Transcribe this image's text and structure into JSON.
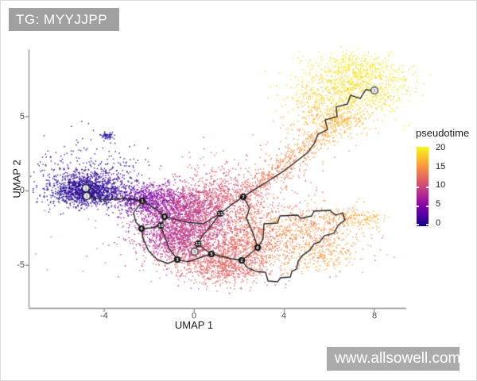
{
  "tag": {
    "label": "TG: MYYJJPP",
    "bg": "#a0a0a0",
    "color": "#ffffff"
  },
  "watermark": {
    "label": "www.allsowell.com",
    "bg": "#ababab",
    "color": "#ffffff"
  },
  "chart_data": {
    "type": "scatter",
    "title": "",
    "xlabel": "UMAP 1",
    "ylabel": "UMAP 2",
    "x_ticks": [
      -4,
      0,
      4,
      8
    ],
    "y_ticks": [
      5,
      0,
      -5
    ],
    "x_tick_labels": [
      "-4",
      "0",
      "4",
      "8"
    ],
    "y_tick_labels": [
      "5",
      "0",
      "-5"
    ],
    "xlim": [
      -7.4,
      9.4
    ],
    "ylim": [
      -7.9,
      9.5
    ],
    "grid": false,
    "axis_color": "#8f8f8f",
    "color_by": "pseudotime",
    "legend": {
      "title": "pseudotime",
      "position": "right",
      "ticks": [
        20,
        15,
        10,
        5,
        0
      ],
      "tick_labels": [
        "20",
        "15",
        "10",
        "5",
        "0"
      ],
      "range": [
        0,
        20
      ],
      "colormap": "plasma"
    },
    "palette_stops": [
      [
        0.0,
        "#0d0887"
      ],
      [
        0.125,
        "#4c02a1"
      ],
      [
        0.25,
        "#7e03a8"
      ],
      [
        0.375,
        "#aa2395"
      ],
      [
        0.5,
        "#cc4778"
      ],
      [
        0.625,
        "#e66c5c"
      ],
      [
        0.75,
        "#f89441"
      ],
      [
        0.875,
        "#fdc328"
      ],
      [
        1.0,
        "#f0f921"
      ]
    ],
    "clusters": [
      {
        "name": "left-core",
        "n": 1100,
        "cx": -4.82,
        "cy": -0.03,
        "sx": 0.75,
        "sy": 0.5,
        "rot": 0,
        "t": [
          0,
          1.5
        ]
      },
      {
        "name": "left-halo",
        "n": 500,
        "cx": -4.5,
        "cy": 0.4,
        "sx": 1.35,
        "sy": 0.85,
        "rot": -8,
        "t": [
          0,
          3
        ]
      },
      {
        "name": "left-upper-sparse",
        "n": 85,
        "cx": -4.6,
        "cy": 1.84,
        "sx": 1.2,
        "sy": 0.9,
        "rot": 0,
        "t": [
          0,
          2
        ]
      },
      {
        "name": "left-tail",
        "line": [
          -3.3,
          -0.45,
          -1.81,
          -0.72
        ],
        "sd": 0.45,
        "n": 330,
        "t": [
          2,
          5
        ]
      },
      {
        "name": "isolated-blob",
        "n": 45,
        "cx": -3.9,
        "cy": 3.71,
        "sx": 0.16,
        "sy": 0.1,
        "rot": 0,
        "t": [
          0,
          1
        ]
      },
      {
        "name": "isolated-sparse",
        "n": 16,
        "cx": -4.1,
        "cy": 3.2,
        "sx": 1.1,
        "sy": 0.85,
        "rot": 0,
        "t": [
          0,
          1.5
        ]
      },
      {
        "name": "violet-band",
        "n": 520,
        "cx": -1.35,
        "cy": -0.67,
        "sx": 0.85,
        "sy": 0.55,
        "rot": -5,
        "t": [
          4,
          7
        ]
      },
      {
        "name": "violet-lower",
        "n": 620,
        "cx": -1.18,
        "cy": -2.27,
        "sx": 0.75,
        "sy": 0.95,
        "rot": 0,
        "t": [
          5.5,
          8.5
        ]
      },
      {
        "name": "purple-deep",
        "n": 500,
        "cx": -0.51,
        "cy": -3.39,
        "sx": 0.9,
        "sy": 0.75,
        "rot": 0,
        "t": [
          7,
          10
        ]
      },
      {
        "name": "magenta-mid",
        "n": 680,
        "cx": 0.27,
        "cy": -2.16,
        "sx": 0.95,
        "sy": 1.05,
        "rot": 0,
        "t": [
          8,
          11.5
        ]
      },
      {
        "name": "mauve-top",
        "n": 420,
        "cx": 0.8,
        "cy": -0.29,
        "sx": 1.0,
        "sy": 0.7,
        "rot": 0,
        "t": [
          9.5,
          12.5
        ]
      },
      {
        "name": "pink-upper-left",
        "n": 250,
        "cx": -0.12,
        "cy": -1.25,
        "sx": 0.6,
        "sy": 0.6,
        "rot": 0,
        "t": [
          7.5,
          10
        ]
      },
      {
        "name": "bottom-maroon",
        "n": 680,
        "cx": 0.87,
        "cy": -4.45,
        "sx": 1.15,
        "sy": 0.75,
        "rot": 0,
        "t": [
          10.5,
          13
        ]
      },
      {
        "name": "bottom-deep",
        "n": 320,
        "cx": 1.47,
        "cy": -5.41,
        "sx": 0.95,
        "sy": 0.55,
        "rot": 0,
        "t": [
          11,
          13
        ]
      },
      {
        "name": "rose-right",
        "n": 420,
        "cx": 2.5,
        "cy": -3.6,
        "sx": 0.8,
        "sy": 0.85,
        "rot": 0,
        "t": [
          12,
          14
        ]
      },
      {
        "name": "rose-arm-base",
        "n": 220,
        "cx": 2.18,
        "cy": -1.41,
        "sx": 0.55,
        "sy": 0.9,
        "rot": 0,
        "t": [
          11.5,
          13
        ]
      },
      {
        "name": "tan-right",
        "n": 540,
        "cx": 4.9,
        "cy": -3.01,
        "sx": 1.35,
        "sy": 0.95,
        "rot": 10,
        "t": [
          13.5,
          16
        ]
      },
      {
        "name": "orange-strip",
        "line": [
          6.0,
          -1.73,
          8.29,
          -1.95
        ],
        "sd": 0.28,
        "n": 150,
        "t": [
          15,
          17
        ]
      },
      {
        "name": "orange-pocket",
        "n": 160,
        "cx": 5.57,
        "cy": -4.35,
        "sx": 0.8,
        "sy": 0.5,
        "rot": 0,
        "t": [
          14.5,
          16.5
        ]
      },
      {
        "name": "arm",
        "line": [
          2.32,
          -0.29,
          6.77,
          5.04
        ],
        "sd": 0.32,
        "n": 470,
        "t": [
          12,
          17
        ]
      },
      {
        "name": "arm-halo",
        "line": [
          2.57,
          0.08,
          6.25,
          4.51
        ],
        "sd": 0.8,
        "n": 140,
        "t": [
          12,
          16
        ]
      },
      {
        "name": "topright-main",
        "n": 760,
        "cx": 7.2,
        "cy": 7.07,
        "sx": 1.15,
        "sy": 0.95,
        "rot": -20,
        "t": [
          17.5,
          20
        ]
      },
      {
        "name": "topright-left",
        "n": 200,
        "cx": 5.57,
        "cy": 6.32,
        "sx": 0.8,
        "sy": 0.8,
        "rot": 0,
        "t": [
          17,
          19
        ]
      },
      {
        "name": "topright-bottom-orange",
        "n": 230,
        "cx": 6.28,
        "cy": 4.77,
        "sx": 0.85,
        "sy": 0.55,
        "rot": 0,
        "t": [
          15.5,
          17.5
        ]
      },
      {
        "name": "topright-top-edge",
        "n": 220,
        "cx": 7.38,
        "cy": 8.35,
        "sx": 1.0,
        "sy": 0.45,
        "rot": -15,
        "t": [
          18.5,
          20
        ]
      },
      {
        "name": "noise-mid",
        "n": 330,
        "cx": 0.5,
        "cy": -2.4,
        "sx": 2.6,
        "sy": 1.9,
        "rot": 0,
        "t": [
          7,
          13
        ]
      },
      {
        "name": "gap-above",
        "n": 80,
        "cx": 1.5,
        "cy": 0.9,
        "sx": 1.3,
        "sy": 0.8,
        "rot": 0,
        "t": [
          10,
          13
        ]
      },
      {
        "name": "loop-sparse",
        "n": 130,
        "cx": 4.2,
        "cy": -1.9,
        "sx": 1.2,
        "sy": 0.8,
        "rot": 0,
        "t": [
          13,
          15
        ]
      }
    ],
    "trajectory": {
      "color": "#252525",
      "edges": [
        [
          [
            -4.78,
            -0.35
          ],
          [
            -4.0,
            -0.61
          ],
          [
            -3.12,
            -0.51
          ],
          [
            -2.31,
            -0.67
          ]
        ],
        [
          [
            -4.82,
            0.19
          ],
          [
            -4.78,
            -0.35
          ]
        ],
        [
          [
            -2.31,
            -0.67
          ],
          [
            -1.67,
            -1.25
          ],
          [
            -1.32,
            -1.73
          ]
        ],
        [
          [
            -1.32,
            -1.73
          ],
          [
            -1.49,
            -2.32
          ]
        ],
        [
          [
            -2.31,
            -0.67
          ],
          [
            -2.7,
            -1.47
          ],
          [
            -2.59,
            -2.11
          ],
          [
            -2.34,
            -2.53
          ]
        ],
        [
          [
            -2.34,
            -2.53
          ],
          [
            -1.92,
            -2.48
          ],
          [
            -1.49,
            -2.32
          ]
        ],
        [
          [
            -2.34,
            -2.53
          ],
          [
            -2.27,
            -3.23
          ],
          [
            -2.03,
            -4.03
          ],
          [
            -1.64,
            -4.61
          ],
          [
            -1.18,
            -4.88
          ],
          [
            -0.75,
            -4.61
          ]
        ],
        [
          [
            -1.49,
            -2.32
          ],
          [
            -1.32,
            -3.07
          ],
          [
            -1.11,
            -3.87
          ],
          [
            -0.75,
            -4.61
          ]
        ],
        [
          [
            -0.75,
            -4.61
          ],
          [
            -0.29,
            -4.77
          ],
          [
            0.13,
            -4.56
          ],
          [
            0.48,
            -4.35
          ],
          [
            0.77,
            -4.24
          ],
          [
            1.23,
            -4.4
          ],
          [
            1.65,
            -4.56
          ],
          [
            2.11,
            -4.67
          ]
        ],
        [
          [
            1.16,
            -1.52
          ],
          [
            0.7,
            -2.43
          ],
          [
            0.34,
            -3.07
          ],
          [
            0.17,
            -3.55
          ]
        ],
        [
          [
            0.17,
            -3.55
          ],
          [
            0.02,
            -4.08
          ]
        ],
        [
          [
            0.17,
            -3.55
          ],
          [
            0.45,
            -3.92
          ],
          [
            0.77,
            -4.24
          ]
        ],
        [
          [
            -1.32,
            -1.73
          ],
          [
            -0.29,
            -2.11
          ],
          [
            0.41,
            -2.21
          ],
          [
            0.8,
            -1.84
          ],
          [
            1.16,
            -1.52
          ]
        ],
        [
          [
            1.16,
            -1.52
          ],
          [
            1.65,
            -0.93
          ],
          [
            2.18,
            -0.4
          ]
        ],
        [
          [
            2.18,
            -0.4
          ],
          [
            2.46,
            -1.15
          ],
          [
            2.32,
            -1.84
          ],
          [
            2.6,
            -2.8
          ],
          [
            2.82,
            -3.81
          ]
        ],
        [
          [
            2.82,
            -3.81
          ],
          [
            2.43,
            -4.29
          ],
          [
            2.11,
            -4.67
          ]
        ],
        [
          [
            2.82,
            -3.81
          ],
          [
            3.06,
            -3.23
          ],
          [
            3.1,
            -2.21
          ],
          [
            3.7,
            -2.16
          ],
          [
            3.81,
            -1.68
          ],
          [
            4.58,
            -1.63
          ],
          [
            4.76,
            -1.84
          ],
          [
            5.22,
            -1.68
          ],
          [
            5.33,
            -1.36
          ],
          [
            6.03,
            -1.31
          ],
          [
            6.28,
            -1.63
          ],
          [
            6.6,
            -1.47
          ],
          [
            6.7,
            -1.95
          ],
          [
            6.39,
            -2.32
          ],
          [
            6.21,
            -2.85
          ],
          [
            5.79,
            -3.01
          ],
          [
            5.57,
            -3.44
          ],
          [
            5.33,
            -3.55
          ],
          [
            5.15,
            -3.97
          ],
          [
            4.8,
            -4.35
          ],
          [
            4.62,
            -4.72
          ],
          [
            4.55,
            -5.25
          ],
          [
            4.34,
            -5.41
          ],
          [
            4.27,
            -5.79
          ],
          [
            3.84,
            -5.84
          ],
          [
            3.7,
            -6.11
          ],
          [
            3.28,
            -6.05
          ],
          [
            3.17,
            -5.47
          ],
          [
            2.75,
            -5.41
          ],
          [
            2.36,
            -5.15
          ],
          [
            2.11,
            -4.67
          ]
        ],
        [
          [
            2.18,
            -0.4
          ],
          [
            2.78,
            0.19
          ],
          [
            3.35,
            0.72
          ],
          [
            3.95,
            1.31
          ],
          [
            4.55,
            2.0
          ],
          [
            5.01,
            2.53
          ],
          [
            5.33,
            3.17
          ],
          [
            5.5,
            3.81
          ],
          [
            5.93,
            4.13
          ],
          [
            5.82,
            4.77
          ],
          [
            6.35,
            4.99
          ],
          [
            6.31,
            5.63
          ],
          [
            6.81,
            5.84
          ],
          [
            6.95,
            6.43
          ],
          [
            7.38,
            6.21
          ],
          [
            7.62,
            6.8
          ],
          [
            8.01,
            6.75
          ]
        ]
      ],
      "nodes_black": [
        {
          "x": -2.31,
          "y": -0.67,
          "label": "1"
        },
        {
          "x": -1.32,
          "y": -1.73,
          "label": "9"
        },
        {
          "x": -1.49,
          "y": -2.32,
          "label": "10"
        },
        {
          "x": -2.34,
          "y": -2.53,
          "label": "4"
        },
        {
          "x": 1.16,
          "y": -1.52,
          "label": "11"
        },
        {
          "x": 2.18,
          "y": -0.4,
          "label": "7"
        },
        {
          "x": 0.17,
          "y": -3.55,
          "label": "12"
        },
        {
          "x": 0.77,
          "y": -4.24,
          "label": "5"
        },
        {
          "x": -0.75,
          "y": -4.61,
          "label": "3"
        },
        {
          "x": 2.11,
          "y": -4.67,
          "label": "2"
        },
        {
          "x": 2.82,
          "y": -3.81,
          "label": "6"
        }
      ],
      "nodes_white": [
        {
          "x": -4.82,
          "y": 0.19,
          "label": "1"
        },
        {
          "x": -4.78,
          "y": -0.35,
          "label": "3"
        },
        {
          "x": 0.02,
          "y": -4.08,
          "label": "8"
        },
        {
          "x": 8.01,
          "y": 6.75,
          "label": "2"
        }
      ]
    }
  }
}
